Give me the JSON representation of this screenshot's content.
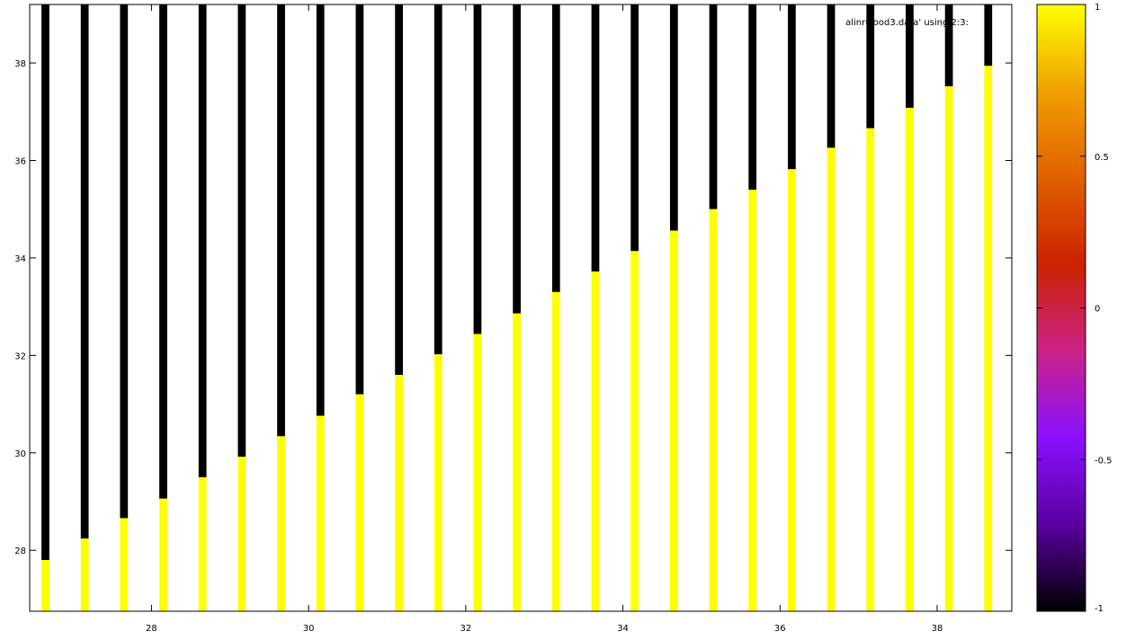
{
  "chart_data": {
    "type": "heatmap",
    "title": "",
    "xlabel": "",
    "ylabel": "",
    "legend": {
      "position": "top-right",
      "text": "alinrFlood3.data' using 2:3:"
    },
    "grid": false,
    "xlim": [
      26.45,
      38.95
    ],
    "ylim": [
      26.75,
      39.2
    ],
    "x_ticks": [
      28,
      30,
      32,
      34,
      36,
      38
    ],
    "x_tick_labels": [
      "28",
      "30",
      "32",
      "34",
      "36",
      "38"
    ],
    "y_ticks": [
      28,
      30,
      32,
      34,
      36,
      38
    ],
    "y_tick_labels": [
      "28",
      "30",
      "32",
      "34",
      "36",
      "38"
    ],
    "colorbar": {
      "min": -1,
      "max": 1,
      "ticks": [
        -1,
        -0.5,
        0,
        0.5,
        1
      ],
      "tick_labels": [
        "-1",
        "-0.5",
        "0",
        "0.5",
        "1"
      ],
      "colors": [
        "#000000",
        "#5a00a0",
        "#8a10ff",
        "#cc2288",
        "#cc2200",
        "#e06000",
        "#f0a000",
        "#ffff00"
      ]
    },
    "column_width": 0.1,
    "columns": [
      {
        "x": 26.65,
        "threshold": 27.8
      },
      {
        "x": 27.15,
        "threshold": 28.24
      },
      {
        "x": 27.65,
        "threshold": 28.66
      },
      {
        "x": 28.15,
        "threshold": 29.06
      },
      {
        "x": 28.65,
        "threshold": 29.5
      },
      {
        "x": 29.15,
        "threshold": 29.92
      },
      {
        "x": 29.65,
        "threshold": 30.34
      },
      {
        "x": 30.15,
        "threshold": 30.76
      },
      {
        "x": 30.65,
        "threshold": 31.2
      },
      {
        "x": 31.15,
        "threshold": 31.6
      },
      {
        "x": 31.65,
        "threshold": 32.02
      },
      {
        "x": 32.15,
        "threshold": 32.44
      },
      {
        "x": 32.65,
        "threshold": 32.86
      },
      {
        "x": 33.15,
        "threshold": 33.3
      },
      {
        "x": 33.65,
        "threshold": 33.72
      },
      {
        "x": 34.15,
        "threshold": 34.14
      },
      {
        "x": 34.65,
        "threshold": 34.56
      },
      {
        "x": 35.15,
        "threshold": 35.0
      },
      {
        "x": 35.65,
        "threshold": 35.4
      },
      {
        "x": 36.15,
        "threshold": 35.82
      },
      {
        "x": 36.65,
        "threshold": 36.26
      },
      {
        "x": 37.15,
        "threshold": 36.66
      },
      {
        "x": 37.65,
        "threshold": 37.08
      },
      {
        "x": 38.15,
        "threshold": 37.52
      },
      {
        "x": 38.65,
        "threshold": 37.94
      }
    ],
    "below_value": 1,
    "above_value": -1
  }
}
